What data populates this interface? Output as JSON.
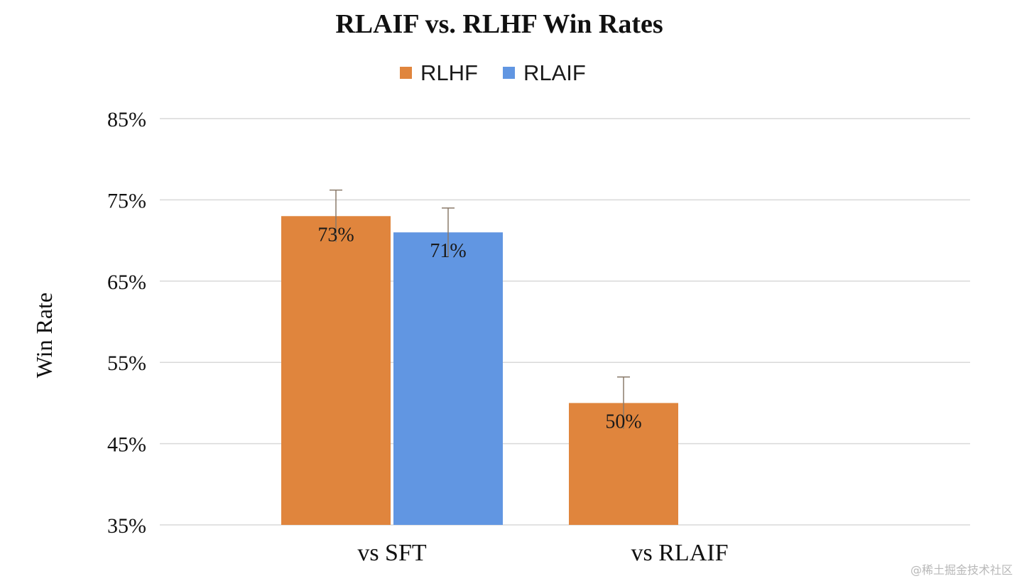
{
  "chart_data": {
    "type": "bar",
    "title": "RLAIF vs. RLHF Win Rates",
    "ylabel": "Win Rate",
    "xlabel": "",
    "ylim": [
      35,
      85
    ],
    "yticks": [
      35,
      45,
      55,
      65,
      75,
      85
    ],
    "ytick_labels": [
      "35%",
      "45%",
      "55%",
      "65%",
      "75%",
      "85%"
    ],
    "categories": [
      "vs SFT",
      "vs RLAIF"
    ],
    "legend_position": "top-center",
    "grid": true,
    "series": [
      {
        "name": "RLHF",
        "color": "#E0853D",
        "values": [
          73,
          50
        ],
        "labels": [
          "73%",
          "50%"
        ],
        "error_upper": [
          76.2,
          53.2
        ]
      },
      {
        "name": "RLAIF",
        "color": "#6196E2",
        "values": [
          71,
          null
        ],
        "labels": [
          "71%",
          null
        ],
        "error_upper": [
          74,
          null
        ]
      }
    ]
  },
  "watermark": "@稀土掘金技术社区"
}
